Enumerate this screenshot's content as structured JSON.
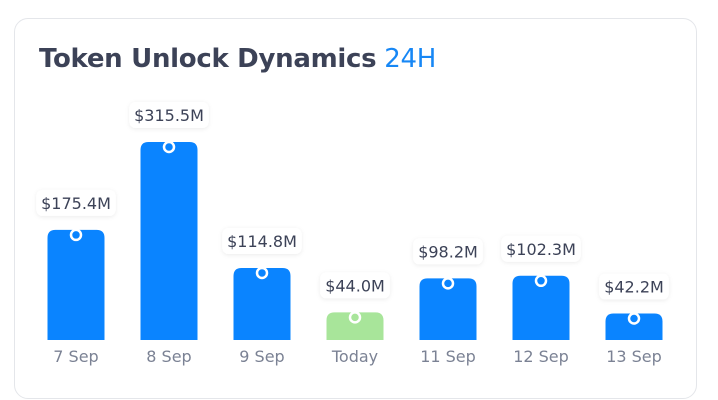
{
  "chart_data": {
    "type": "bar",
    "title": "Token Unlock Dynamics",
    "title_badge": "24H",
    "categories": [
      "7 Sep",
      "8 Sep",
      "9 Sep",
      "Today",
      "11 Sep",
      "12 Sep",
      "13 Sep"
    ],
    "values": [
      175.4,
      315.5,
      114.8,
      44.0,
      98.2,
      102.3,
      42.2
    ],
    "value_labels": [
      "$175.4M",
      "$315.5M",
      "$114.8M",
      "$44.0M",
      "$98.2M",
      "$102.3M",
      "$42.2M"
    ],
    "unit": "USD millions",
    "highlight_category": "Today",
    "grid": false,
    "colors": {
      "bar": "#0a84ff",
      "highlight": "#a8e59a",
      "title": "#3c4257",
      "accent": "#1787f5",
      "xlabel": "#7b8294"
    }
  }
}
